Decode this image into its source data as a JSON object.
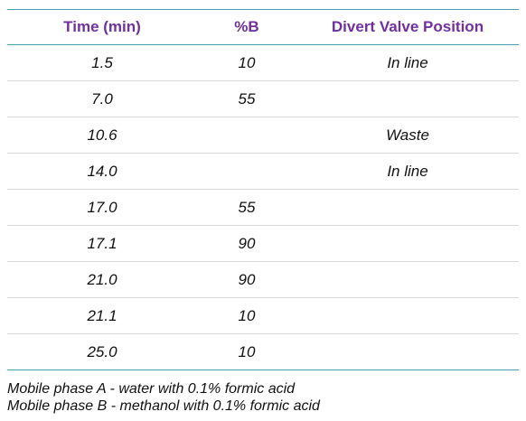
{
  "table": {
    "headers": [
      "Time (min)",
      "%B",
      "Divert Valve Position"
    ],
    "rows": [
      [
        "1.5",
        "10",
        "In line"
      ],
      [
        "7.0",
        "55",
        ""
      ],
      [
        "10.6",
        "",
        "Waste"
      ],
      [
        "14.0",
        "",
        "In line"
      ],
      [
        "17.0",
        "55",
        ""
      ],
      [
        "17.1",
        "90",
        ""
      ],
      [
        "21.0",
        "90",
        ""
      ],
      [
        "21.1",
        "10",
        ""
      ],
      [
        "25.0",
        "10",
        ""
      ]
    ]
  },
  "footnotes": [
    "Mobile phase A - water with 0.1% formic acid",
    "Mobile phase B - methanol with 0.1% formic acid"
  ],
  "colors": {
    "header_text": "#7030a0",
    "rule": "#4a9fad",
    "row_divider": "#d9d9d9"
  }
}
